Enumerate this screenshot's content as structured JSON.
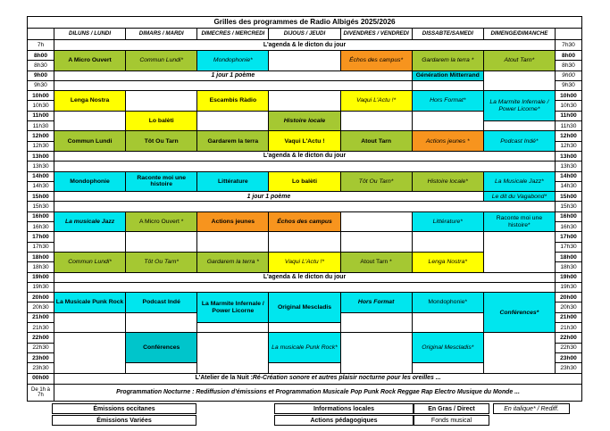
{
  "title": "Grilles des programmes de Radio Albigés 2025/2026",
  "days": [
    "DILUNS / LUNDI",
    "DIMARS / MARDI",
    "DIMECRES / MERCREDI",
    "DIJOUS / JEUDI",
    "DIVENDRES / VENDREDI",
    "DISSABTE/SAMEDI",
    "DIMENGE/DIMANCHE"
  ],
  "times": {
    "first_left": "7h",
    "first_right": "7h30",
    "slots": [
      "8h00",
      "8h30",
      "9h00",
      "9h30",
      "10h00",
      "10h30",
      "11h00",
      "11h30",
      "12h00",
      "12h30",
      "13h00",
      "13h30",
      "14h00",
      "14h30",
      "15h00",
      "15h30",
      "16h00",
      "16h30",
      "17h00",
      "17h30",
      "18h00",
      "18h30",
      "19h00",
      "19h30",
      "20h00",
      "20h30",
      "21h00",
      "21h30",
      "22h00",
      "22h30",
      "23h00",
      "23h30"
    ],
    "midnight": "00h00",
    "night_line1": "De 1h à",
    "night_line2": "7h"
  },
  "strings": {
    "agenda": "L'agenda & le dicton du jour",
    "poem": "1 jour 1 poème",
    "atelier_lead": "L'Atelier de la Nuit :",
    "atelier_rest": " Ré-Création sonore et autres plaisir nocturne pour les oreilles ...",
    "nocturne": "Programmation Nocturne : Rediffusion d'émissions et Programmation Musicale Pop Punk Rock Reggae Rap  Electro Musique du Monde ..."
  },
  "colors": {
    "green": "#A5C832",
    "yellow": "#FFFF00",
    "cyan": "#00E6EE",
    "orange": "#F7941E",
    "teal": "#00C5CB",
    "gm": "#00D8E0",
    "white": "#FFFFFF"
  },
  "bands": [
    {
      "slot": 2,
      "colspan": 5,
      "text": "1 jour 1 poème",
      "style": "bi"
    },
    {
      "slot": 3,
      "colspan": 5,
      "text": "",
      "style": "r"
    },
    {
      "slot": 10,
      "colspan": 7,
      "text": "L'agenda & le dicton du jour",
      "style": "b"
    },
    {
      "slot": 11,
      "colspan": 7,
      "text": "",
      "style": "r"
    },
    {
      "slot": 14,
      "colspan": 6,
      "text": "1 jour 1 poème",
      "style": "bi"
    },
    {
      "slot": 15,
      "colspan": 7,
      "text": "",
      "style": "r"
    },
    {
      "slot": 22,
      "colspan": 7,
      "text": "L'agenda & le dicton du jour",
      "style": "b"
    },
    {
      "slot": 23,
      "colspan": 7,
      "text": "",
      "style": "r"
    }
  ],
  "blocks": [
    {
      "day": 0,
      "slot": 0,
      "span": 2,
      "label": "A Micro Ouvert",
      "color": "green",
      "style": "b"
    },
    {
      "day": 0,
      "slot": 4,
      "span": 2,
      "label": "Lenga Nostra",
      "color": "yellow",
      "style": "b"
    },
    {
      "day": 0,
      "slot": 6,
      "span": 2,
      "label": "",
      "color": "white",
      "style": "r"
    },
    {
      "day": 0,
      "slot": 8,
      "span": 2,
      "label": "Commun Lundi",
      "color": "green",
      "style": "b"
    },
    {
      "day": 0,
      "slot": 12,
      "span": 2,
      "label": "Mondophonie",
      "color": "cyan",
      "style": "b"
    },
    {
      "day": 0,
      "slot": 16,
      "span": 2,
      "label": "La musicale Jazz",
      "color": "cyan",
      "style": "bi"
    },
    {
      "day": 0,
      "slot": 18,
      "span": 2,
      "label": "",
      "color": "white",
      "style": "r"
    },
    {
      "day": 0,
      "slot": 20,
      "span": 2,
      "label": "Commun Lundi*",
      "color": "green",
      "style": "i"
    },
    {
      "day": 0,
      "slot": 24,
      "span": 2,
      "label": "La Musicale Punk Rock",
      "color": "cyan",
      "style": "b"
    },
    {
      "day": 0,
      "slot": 26,
      "span": 2,
      "label": "",
      "color": "white",
      "style": "r"
    },
    {
      "day": 0,
      "slot": 28,
      "span": 4,
      "label": "",
      "color": "white",
      "style": "r"
    },
    {
      "day": 1,
      "slot": 0,
      "span": 2,
      "label": "Commun Lundi*",
      "color": "green",
      "style": "i"
    },
    {
      "day": 1,
      "slot": 4,
      "span": 2,
      "label": "",
      "color": "white",
      "style": "r"
    },
    {
      "day": 1,
      "slot": 6,
      "span": 2,
      "label": "Lo balèti",
      "color": "yellow",
      "style": "b"
    },
    {
      "day": 1,
      "slot": 8,
      "span": 2,
      "label": "Tôt Ou Tarn",
      "color": "green",
      "style": "b"
    },
    {
      "day": 1,
      "slot": 12,
      "span": 2,
      "label": "Raconte moi une histoire",
      "color": "cyan",
      "style": "b"
    },
    {
      "day": 1,
      "slot": 16,
      "span": 2,
      "label": "A Micro Ouvert *",
      "color": "green",
      "style": "r"
    },
    {
      "day": 1,
      "slot": 18,
      "span": 2,
      "label": "",
      "color": "white",
      "style": "r"
    },
    {
      "day": 1,
      "slot": 20,
      "span": 2,
      "label": "Tôt Ou Tarn*",
      "color": "green",
      "style": "i"
    },
    {
      "day": 1,
      "slot": 24,
      "span": 2,
      "label": "Podcast Indé",
      "color": "cyan",
      "style": "b"
    },
    {
      "day": 1,
      "slot": 26,
      "span": 2,
      "label": "",
      "color": "white",
      "style": "r"
    },
    {
      "day": 1,
      "slot": 28,
      "span": 3,
      "label": "Conférences",
      "color": "teal",
      "style": "b"
    },
    {
      "day": 1,
      "slot": 31,
      "span": 1,
      "label": "",
      "color": "white",
      "style": "r"
    },
    {
      "day": 2,
      "slot": 0,
      "span": 2,
      "label": "Mondophonie*",
      "color": "cyan",
      "style": "i"
    },
    {
      "day": 2,
      "slot": 4,
      "span": 2,
      "label": "Escambis Ràdio",
      "color": "yellow",
      "style": "b"
    },
    {
      "day": 2,
      "slot": 6,
      "span": 2,
      "label": "",
      "color": "white",
      "style": "r"
    },
    {
      "day": 2,
      "slot": 8,
      "span": 2,
      "label": "Gardarem la terra",
      "color": "green",
      "style": "b"
    },
    {
      "day": 2,
      "slot": 12,
      "span": 2,
      "label": "Littérature",
      "color": "cyan",
      "style": "b"
    },
    {
      "day": 2,
      "slot": 16,
      "span": 2,
      "label": "Actions jeunes",
      "color": "orange",
      "style": "b"
    },
    {
      "day": 2,
      "slot": 18,
      "span": 2,
      "label": "",
      "color": "white",
      "style": "r"
    },
    {
      "day": 2,
      "slot": 20,
      "span": 2,
      "label": "Gardarem la terra *",
      "color": "green",
      "style": "i"
    },
    {
      "day": 2,
      "slot": 24,
      "span": 3,
      "label": "La Marmite Infernale / Power Licorne",
      "color": "cyan",
      "style": "b"
    },
    {
      "day": 2,
      "slot": 27,
      "span": 1,
      "label": "",
      "color": "white",
      "style": "r"
    },
    {
      "day": 2,
      "slot": 28,
      "span": 4,
      "label": "",
      "color": "white",
      "style": "r"
    },
    {
      "day": 3,
      "slot": 0,
      "span": 2,
      "label": "",
      "color": "white",
      "style": "r"
    },
    {
      "day": 3,
      "slot": 4,
      "span": 2,
      "label": "",
      "color": "white",
      "style": "r"
    },
    {
      "day": 3,
      "slot": 6,
      "span": 2,
      "label": "Histoire locale",
      "color": "green",
      "style": "bi"
    },
    {
      "day": 3,
      "slot": 8,
      "span": 2,
      "label": "Vaqui L'Actu !",
      "color": "yellow",
      "style": "b"
    },
    {
      "day": 3,
      "slot": 12,
      "span": 2,
      "label": "Lo balèti",
      "color": "yellow",
      "style": "b"
    },
    {
      "day": 3,
      "slot": 16,
      "span": 2,
      "label": "Échos des campus",
      "color": "orange",
      "style": "bi"
    },
    {
      "day": 3,
      "slot": 18,
      "span": 2,
      "label": "",
      "color": "white",
      "style": "r"
    },
    {
      "day": 3,
      "slot": 20,
      "span": 2,
      "label": "Vaqui L'Actu !*",
      "color": "yellow",
      "style": "i"
    },
    {
      "day": 3,
      "slot": 24,
      "span": 3,
      "label": "Original Mescladis",
      "color": "cyan",
      "style": "b"
    },
    {
      "day": 3,
      "slot": 27,
      "span": 1,
      "label": "",
      "color": "white",
      "style": "r"
    },
    {
      "day": 3,
      "slot": 28,
      "span": 3,
      "label": "La musicale Punk Rock*",
      "color": "cyan",
      "style": "i"
    },
    {
      "day": 3,
      "slot": 31,
      "span": 1,
      "label": "",
      "color": "white",
      "style": "r"
    },
    {
      "day": 4,
      "slot": 0,
      "span": 2,
      "label": "Échos des campus*",
      "color": "orange",
      "style": "i"
    },
    {
      "day": 4,
      "slot": 4,
      "span": 2,
      "label": "Vaqui L'Actu !*",
      "color": "yellow",
      "style": "i"
    },
    {
      "day": 4,
      "slot": 6,
      "span": 2,
      "label": "",
      "color": "white",
      "style": "r"
    },
    {
      "day": 4,
      "slot": 8,
      "span": 2,
      "label": "Atout Tarn",
      "color": "green",
      "style": "b"
    },
    {
      "day": 4,
      "slot": 12,
      "span": 2,
      "label": "Tôt Ou Tarn*",
      "color": "green",
      "style": "i"
    },
    {
      "day": 4,
      "slot": 16,
      "span": 2,
      "label": "",
      "color": "white",
      "style": "r"
    },
    {
      "day": 4,
      "slot": 18,
      "span": 2,
      "label": "",
      "color": "white",
      "style": "r"
    },
    {
      "day": 4,
      "slot": 20,
      "span": 2,
      "label": "Atout Tarn *",
      "color": "green",
      "style": "r"
    },
    {
      "day": 4,
      "slot": 24,
      "span": 2,
      "label": "Hors Format",
      "color": "cyan",
      "style": "bi"
    },
    {
      "day": 4,
      "slot": 26,
      "span": 2,
      "label": "",
      "color": "white",
      "style": "r"
    },
    {
      "day": 4,
      "slot": 28,
      "span": 4,
      "label": "",
      "color": "white",
      "style": "r"
    },
    {
      "day": 5,
      "slot": 0,
      "span": 2,
      "label": "Gardarem la terra *",
      "color": "green",
      "style": "i"
    },
    {
      "day": 5,
      "slot": 2,
      "span": 1,
      "label": "Génération Mitterrand",
      "color": "gm",
      "style": "b"
    },
    {
      "day": 5,
      "slot": 3,
      "span": 1,
      "label": "",
      "color": "white",
      "style": "r"
    },
    {
      "day": 5,
      "slot": 4,
      "span": 2,
      "label": "Hors Format*",
      "color": "cyan",
      "style": "i"
    },
    {
      "day": 5,
      "slot": 6,
      "span": 2,
      "label": "",
      "color": "white",
      "style": "r"
    },
    {
      "day": 5,
      "slot": 8,
      "span": 2,
      "label": "Actions jeunes *",
      "color": "orange",
      "style": "i"
    },
    {
      "day": 5,
      "slot": 12,
      "span": 2,
      "label": "Histoire locale*",
      "color": "green",
      "style": "i"
    },
    {
      "day": 5,
      "slot": 16,
      "span": 2,
      "label": "Littérature*",
      "color": "cyan",
      "style": "i"
    },
    {
      "day": 5,
      "slot": 18,
      "span": 2,
      "label": "",
      "color": "white",
      "style": "r"
    },
    {
      "day": 5,
      "slot": 20,
      "span": 2,
      "label": "Lenga Nostra*",
      "color": "yellow",
      "style": "i"
    },
    {
      "day": 5,
      "slot": 24,
      "span": 2,
      "label": "Mondophonie*",
      "color": "cyan",
      "style": "r"
    },
    {
      "day": 5,
      "slot": 26,
      "span": 2,
      "label": "",
      "color": "white",
      "style": "r"
    },
    {
      "day": 5,
      "slot": 28,
      "span": 3,
      "label": "Original Mescladis*",
      "color": "cyan",
      "style": "i"
    },
    {
      "day": 5,
      "slot": 31,
      "span": 1,
      "label": "",
      "color": "white",
      "style": "r"
    },
    {
      "day": 6,
      "slot": 0,
      "span": 2,
      "label": "Atout Tarn*",
      "color": "green",
      "style": "i"
    },
    {
      "day": 6,
      "slot": 2,
      "span": 2,
      "label": "",
      "color": "white",
      "style": "r"
    },
    {
      "day": 6,
      "slot": 4,
      "span": 3,
      "label": "La Marmite Infernale / Power Licorne*",
      "color": "cyan",
      "style": "i"
    },
    {
      "day": 6,
      "slot": 7,
      "span": 1,
      "label": "",
      "color": "white",
      "style": "r"
    },
    {
      "day": 6,
      "slot": 8,
      "span": 2,
      "label": "Podcast Indé*",
      "color": "cyan",
      "style": "i"
    },
    {
      "day": 6,
      "slot": 12,
      "span": 2,
      "label": "La Musicale  Jazz*",
      "color": "cyan",
      "style": "i"
    },
    {
      "day": 6,
      "slot": 14,
      "span": 1,
      "label": "Le dit du Vagabond*",
      "color": "cyan",
      "style": "i"
    },
    {
      "day": 6,
      "slot": 16,
      "span": 2,
      "label": "Raconte moi une histoire*",
      "color": "cyan",
      "style": "r"
    },
    {
      "day": 6,
      "slot": 18,
      "span": 4,
      "label": "",
      "color": "white",
      "style": "r"
    },
    {
      "day": 6,
      "slot": 24,
      "span": 4,
      "label": "Conférences*",
      "color": "cyan",
      "style": "bi"
    },
    {
      "day": 6,
      "slot": 28,
      "span": 4,
      "label": "",
      "color": "white",
      "style": "r"
    }
  ],
  "legend": {
    "occitan": "Émissions occitanes",
    "varied": "Émissions Variées",
    "info": "Informations locales",
    "pedago": "Actions pédagogiques",
    "direct": "En Gras / Direct",
    "fonds": "Fonds musical",
    "rediff": "En italique* / Rediff."
  }
}
